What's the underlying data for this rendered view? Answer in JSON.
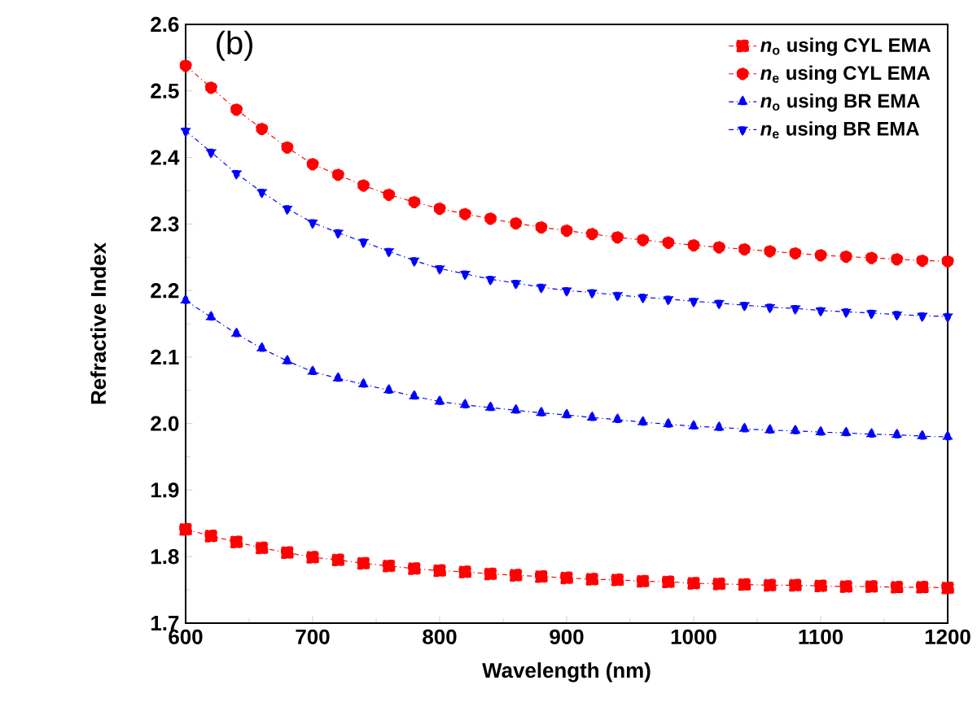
{
  "chart_data": {
    "type": "line",
    "xlabel": "Wavelength (nm)",
    "ylabel": "Refractive Index",
    "annotations": [
      "(b)"
    ],
    "x": [
      600,
      620,
      640,
      660,
      680,
      700,
      720,
      740,
      760,
      780,
      800,
      820,
      840,
      860,
      880,
      900,
      920,
      940,
      960,
      980,
      1000,
      1020,
      1040,
      1060,
      1080,
      1100,
      1120,
      1140,
      1160,
      1180,
      1200
    ],
    "series": [
      {
        "name": "*n*$_{o}$ using CYL EMA",
        "color": "#ff0000",
        "marker": "square",
        "values": [
          1.841,
          1.831,
          1.822,
          1.813,
          1.806,
          1.799,
          1.795,
          1.79,
          1.786,
          1.782,
          1.779,
          1.777,
          1.774,
          1.772,
          1.77,
          1.768,
          1.766,
          1.765,
          1.763,
          1.762,
          1.76,
          1.759,
          1.758,
          1.757,
          1.757,
          1.756,
          1.755,
          1.755,
          1.754,
          1.754,
          1.753
        ]
      },
      {
        "name": "*n*$_{e}$ using CYL EMA",
        "color": "#ff0000",
        "marker": "circle",
        "values": [
          2.538,
          2.505,
          2.472,
          2.443,
          2.415,
          2.39,
          2.374,
          2.358,
          2.344,
          2.333,
          2.323,
          2.315,
          2.308,
          2.301,
          2.295,
          2.29,
          2.285,
          2.28,
          2.276,
          2.272,
          2.268,
          2.265,
          2.262,
          2.259,
          2.256,
          2.253,
          2.251,
          2.249,
          2.247,
          2.245,
          2.244
        ]
      },
      {
        "name": "*n*$_{o}$ using BR EMA",
        "color": "#0000ff",
        "marker": "triangle",
        "values": [
          2.185,
          2.16,
          2.135,
          2.113,
          2.094,
          2.078,
          2.068,
          2.059,
          2.05,
          2.041,
          2.033,
          2.028,
          2.024,
          2.02,
          2.016,
          2.013,
          2.009,
          2.006,
          2.002,
          1.999,
          1.996,
          1.994,
          1.992,
          1.99,
          1.989,
          1.987,
          1.986,
          1.984,
          1.983,
          1.981,
          1.98
        ]
      },
      {
        "name": "*n*$_{e}$ using BR EMA",
        "color": "#0000ff",
        "marker": "triangle-down",
        "values": [
          2.44,
          2.408,
          2.376,
          2.348,
          2.323,
          2.302,
          2.287,
          2.273,
          2.259,
          2.245,
          2.233,
          2.225,
          2.217,
          2.211,
          2.205,
          2.2,
          2.197,
          2.193,
          2.19,
          2.187,
          2.184,
          2.181,
          2.178,
          2.175,
          2.173,
          2.17,
          2.168,
          2.166,
          2.164,
          2.162,
          2.161
        ]
      }
    ],
    "line_style": "dashdot",
    "xlim": [
      600,
      1200
    ],
    "xticks": [
      600,
      700,
      800,
      900,
      1000,
      1100,
      1200
    ],
    "ylim": [
      1.7,
      2.6
    ],
    "yticks": [
      {
        "value": 1.7,
        "label": "1.7"
      },
      {
        "value": 1.8,
        "label": "1.8"
      },
      {
        "value": 1.9,
        "label": "1.9"
      },
      {
        "value": 2.0,
        "label": "2.0"
      },
      {
        "value": 2.1,
        "label": "2.1"
      },
      {
        "value": 2.2,
        "label": "2.2"
      },
      {
        "value": 2.3,
        "label": "2.3"
      },
      {
        "value": 2.4,
        "label": "2.4"
      },
      {
        "value": 2.5,
        "label": "2.5"
      },
      {
        "value": 2.6,
        "label": "2.6"
      }
    ],
    "grid": false,
    "legend": "top right"
  }
}
